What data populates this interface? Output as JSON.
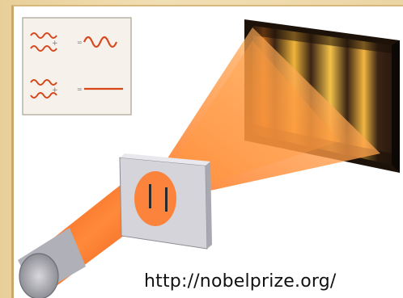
{
  "source_text": "http://nobelprize.org/",
  "colors": {
    "beam": "#f46a1f",
    "wave": "#d8471a",
    "fringe_bright": "#f2c23a",
    "screen_dark": "#2a1b10",
    "slit_plate": "#cfcfd6"
  }
}
